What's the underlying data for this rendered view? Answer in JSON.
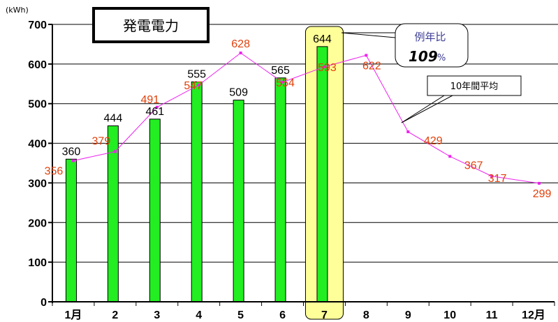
{
  "chart_data": {
    "type": "bar",
    "title": "発電電力",
    "ylabel": "(kWh)",
    "ylim": [
      0,
      700
    ],
    "yticks": [
      0,
      100,
      200,
      300,
      400,
      500,
      600,
      700
    ],
    "categories": [
      "1月",
      "2",
      "3",
      "4",
      "5",
      "6",
      "7",
      "8",
      "9",
      "10",
      "11",
      "12月"
    ],
    "grid": true,
    "series": [
      {
        "kind": "bar",
        "color": "#22ee22",
        "values": [
          360,
          444,
          461,
          555,
          509,
          565,
          644,
          null,
          null,
          null,
          null,
          null
        ]
      },
      {
        "name": "10年間平均",
        "kind": "line",
        "color": "#ee22ee",
        "label_color": "#e0400a",
        "values": [
          356,
          379,
          491,
          547,
          628,
          554,
          593,
          622,
          429,
          367,
          317,
          299
        ]
      }
    ],
    "highlight": {
      "category": "7",
      "color": "#ffff99"
    },
    "annotations": {
      "ratio_label": "例年比",
      "ratio_value": "109",
      "ratio_unit": "%",
      "avg_label": "10年間平均"
    }
  }
}
